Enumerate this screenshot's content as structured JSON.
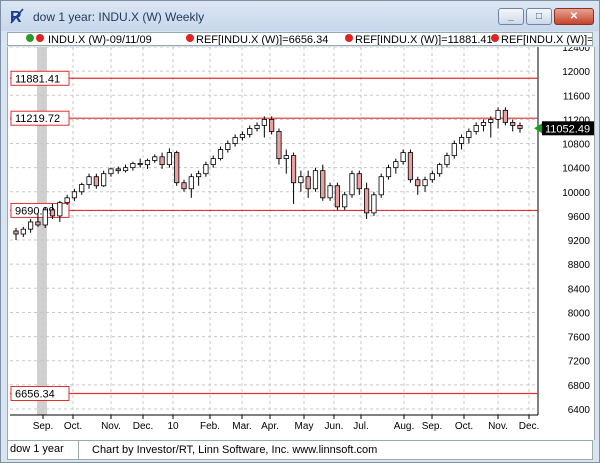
{
  "window": {
    "title": "dow 1 year: INDU.X (W) Weekly"
  },
  "legend": {
    "series_label": "INDU.X (W)-09/11/09",
    "ref1": "REF[INDU.X (W)]=6656.34",
    "ref2": "REF[INDU.X (W)]=11881.41",
    "ref3": "REF[INDU.X (W)]=9"
  },
  "footer": {
    "tab": "dow 1 year",
    "credit": "Chart by Investor/RT, Linn Software, Inc. www.linnsoft.com"
  },
  "colors": {
    "up": "#ffffff",
    "down": "#e8a0a0",
    "refline": "#e03030",
    "grid": "#c8c8c8",
    "highlight": "#d0d0d0",
    "last_price_bg": "#000000",
    "last_price_arrow": "#1aa01a"
  },
  "chart_data": {
    "type": "candlestick",
    "ylim": [
      6300,
      12400
    ],
    "y_ticks": [
      "12400",
      "12000",
      "11600",
      "11200",
      "10800",
      "10400",
      "10000",
      "9600",
      "9200",
      "8800",
      "8400",
      "8000",
      "7600",
      "7200",
      "6800",
      "6400"
    ],
    "x_labels": [
      "Sep.",
      "Oct.",
      "Nov.",
      "Dec.",
      "10",
      "Feb.",
      "Mar.",
      "Apr.",
      "May",
      "Jun.",
      "Jul.",
      "Aug.",
      "Sep.",
      "Oct.",
      "Nov.",
      "Dec."
    ],
    "ref_lines": [
      {
        "value": 11881.41,
        "label": "11881.41"
      },
      {
        "value": 11219.72,
        "label": "11219.72"
      },
      {
        "value": 9690.99,
        "label": "9690.99"
      },
      {
        "value": 6656.34,
        "label": "6656.34"
      }
    ],
    "last_price": "11052.49",
    "grid": true,
    "candles": [
      [
        9350,
        9400,
        9200,
        9300
      ],
      [
        9300,
        9420,
        9250,
        9380
      ],
      [
        9380,
        9550,
        9320,
        9500
      ],
      [
        9500,
        9650,
        9420,
        9450
      ],
      [
        9450,
        9750,
        9400,
        9700
      ],
      [
        9700,
        9800,
        9550,
        9600
      ],
      [
        9600,
        9850,
        9500,
        9820
      ],
      [
        9820,
        9950,
        9780,
        9900
      ],
      [
        9900,
        10050,
        9850,
        10000
      ],
      [
        10000,
        10150,
        9950,
        10120
      ],
      [
        10120,
        10300,
        10050,
        10250
      ],
      [
        10250,
        10300,
        10050,
        10100
      ],
      [
        10100,
        10350,
        10080,
        10300
      ],
      [
        10300,
        10400,
        10250,
        10380
      ],
      [
        10380,
        10420,
        10300,
        10350
      ],
      [
        10350,
        10450,
        10320,
        10400
      ],
      [
        10400,
        10500,
        10350,
        10470
      ],
      [
        10470,
        10550,
        10400,
        10450
      ],
      [
        10450,
        10550,
        10380,
        10520
      ],
      [
        10520,
        10620,
        10480,
        10580
      ],
      [
        10580,
        10650,
        10380,
        10450
      ],
      [
        10450,
        10720,
        10400,
        10650
      ],
      [
        10650,
        10680,
        10100,
        10150
      ],
      [
        10150,
        10200,
        10000,
        10050
      ],
      [
        10050,
        10300,
        9900,
        10250
      ],
      [
        10250,
        10350,
        10100,
        10300
      ],
      [
        10300,
        10500,
        10250,
        10450
      ],
      [
        10450,
        10600,
        10400,
        10550
      ],
      [
        10550,
        10750,
        10520,
        10700
      ],
      [
        10700,
        10850,
        10650,
        10800
      ],
      [
        10800,
        10950,
        10750,
        10900
      ],
      [
        10900,
        11000,
        10850,
        10950
      ],
      [
        10950,
        11100,
        10900,
        11050
      ],
      [
        11050,
        11150,
        11000,
        11100
      ],
      [
        11100,
        11250,
        10900,
        11200
      ],
      [
        11200,
        11250,
        10950,
        11000
      ],
      [
        11000,
        11050,
        10450,
        10550
      ],
      [
        10550,
        10700,
        10300,
        10600
      ],
      [
        10600,
        10650,
        9800,
        10150
      ],
      [
        10150,
        10350,
        10000,
        10250
      ],
      [
        10250,
        10350,
        9900,
        10050
      ],
      [
        10050,
        10400,
        10000,
        10350
      ],
      [
        10350,
        10450,
        9850,
        9900
      ],
      [
        9900,
        10150,
        9850,
        10100
      ],
      [
        10100,
        10150,
        9700,
        9750
      ],
      [
        9750,
        10000,
        9700,
        9950
      ],
      [
        9950,
        10350,
        9900,
        10300
      ],
      [
        10300,
        10350,
        9950,
        10050
      ],
      [
        10050,
        10150,
        9550,
        9650
      ],
      [
        9650,
        10000,
        9600,
        9950
      ],
      [
        9950,
        10300,
        9900,
        10250
      ],
      [
        10250,
        10450,
        10200,
        10400
      ],
      [
        10400,
        10550,
        10300,
        10500
      ],
      [
        10500,
        10700,
        10450,
        10650
      ],
      [
        10650,
        10700,
        10150,
        10200
      ],
      [
        10200,
        10250,
        9950,
        10100
      ],
      [
        10100,
        10250,
        10000,
        10200
      ],
      [
        10200,
        10350,
        10150,
        10300
      ],
      [
        10300,
        10480,
        10250,
        10450
      ],
      [
        10450,
        10650,
        10400,
        10600
      ],
      [
        10600,
        10850,
        10550,
        10800
      ],
      [
        10800,
        10950,
        10700,
        10900
      ],
      [
        10900,
        11050,
        10800,
        11000
      ],
      [
        11000,
        11150,
        10950,
        11100
      ],
      [
        11100,
        11200,
        11000,
        11150
      ],
      [
        11150,
        11250,
        10900,
        11200
      ],
      [
        11200,
        11400,
        11050,
        11350
      ],
      [
        11350,
        11400,
        11100,
        11150
      ],
      [
        11150,
        11200,
        11000,
        11100
      ],
      [
        11100,
        11150,
        10980,
        11050
      ]
    ]
  }
}
